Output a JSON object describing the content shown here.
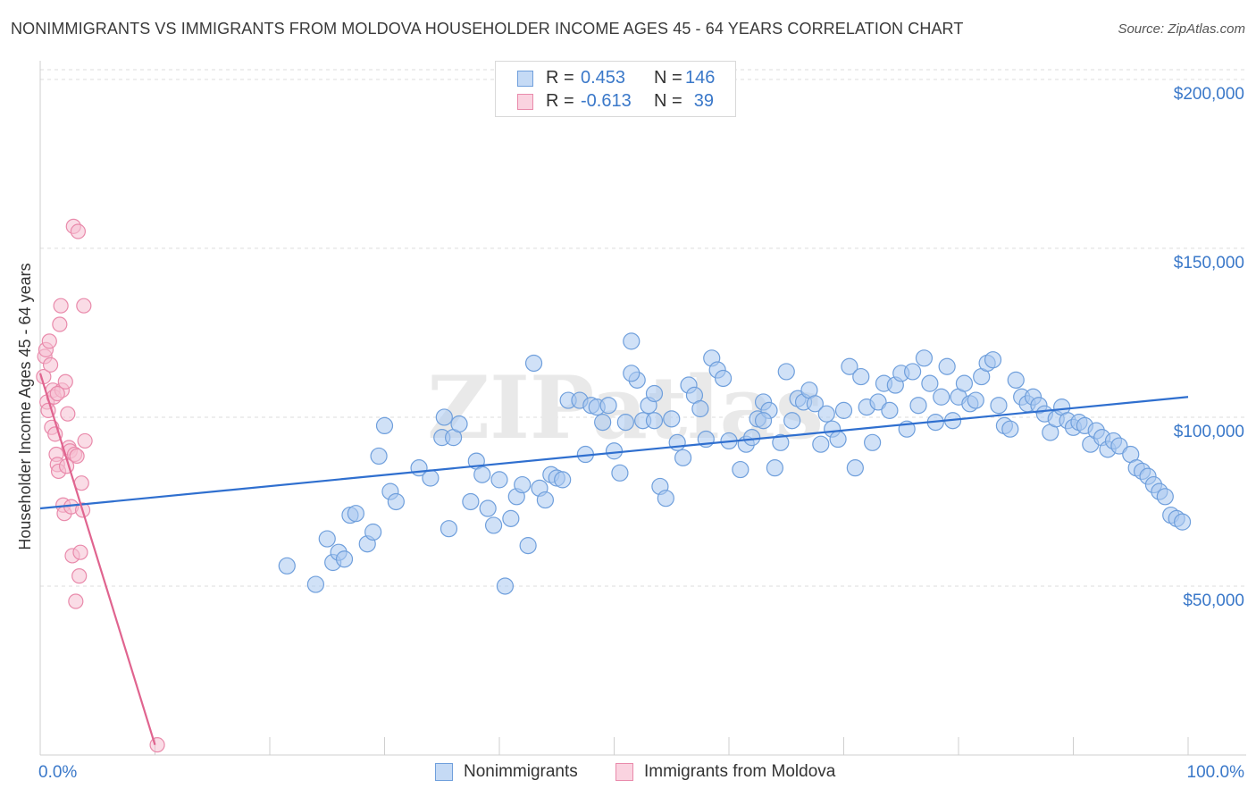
{
  "title": "NONIMMIGRANTS VS IMMIGRANTS FROM MOLDOVA HOUSEHOLDER INCOME AGES 45 - 64 YEARS CORRELATION CHART",
  "source": "Source: ZipAtlas.com",
  "watermark": "ZIPatlas",
  "colors": {
    "blue_fill": "#a9c8f0",
    "blue_stroke": "#6f9fdc",
    "blue_line": "#2f6fcf",
    "pink_fill": "#f6bfd1",
    "pink_stroke": "#e98aab",
    "pink_line": "#e0648f",
    "axis_text": "#3a78c9",
    "grid": "#dddddd"
  },
  "legend_stats": [
    {
      "r_label": "R =",
      "r_value": "0.453",
      "n_label": "N =",
      "n_value": "146"
    },
    {
      "r_label": "R =",
      "r_value": "-0.613",
      "n_label": "N =",
      "n_value": "39"
    }
  ],
  "chart_data": {
    "type": "scatter",
    "title": "NONIMMIGRANTS VS IMMIGRANTS FROM MOLDOVA HOUSEHOLDER INCOME AGES 45 - 64 YEARS CORRELATION CHART",
    "xlabel": "",
    "ylabel": "Householder Income Ages 45 - 64 years",
    "xlim": [
      0,
      100
    ],
    "ylim": [
      0,
      205000
    ],
    "x_tick_labels": [
      "0.0%",
      "100.0%"
    ],
    "y_ticks": [
      50000,
      100000,
      150000,
      200000
    ],
    "y_tick_labels": [
      "$50,000",
      "$100,000",
      "$150,000",
      "$200,000"
    ],
    "grid": true,
    "legend_position": "bottom",
    "series": [
      {
        "name": "Nonimmigrants",
        "trend": {
          "x0": 0,
          "y0": 73000,
          "x1": 100,
          "y1": 106000
        },
        "points": [
          [
            21.5,
            56
          ],
          [
            24.0,
            50.5
          ],
          [
            25.0,
            64
          ],
          [
            25.5,
            57
          ],
          [
            26.0,
            60
          ],
          [
            26.5,
            58
          ],
          [
            27.0,
            71
          ],
          [
            27.5,
            71.5
          ],
          [
            28.5,
            62.5
          ],
          [
            29.0,
            66
          ],
          [
            29.5,
            88.5
          ],
          [
            30.0,
            97.5
          ],
          [
            30.5,
            78
          ],
          [
            31.0,
            75
          ],
          [
            33.0,
            85
          ],
          [
            34.0,
            82
          ],
          [
            35.0,
            94
          ],
          [
            35.2,
            100
          ],
          [
            35.6,
            67
          ],
          [
            36.0,
            94
          ],
          [
            36.5,
            98
          ],
          [
            37.5,
            75
          ],
          [
            38.0,
            87
          ],
          [
            38.5,
            83
          ],
          [
            39.0,
            73
          ],
          [
            39.5,
            68
          ],
          [
            40.0,
            81.5
          ],
          [
            40.5,
            50
          ],
          [
            41.0,
            70
          ],
          [
            41.5,
            76.5
          ],
          [
            42.0,
            80
          ],
          [
            42.5,
            62
          ],
          [
            43.0,
            116
          ],
          [
            43.5,
            79
          ],
          [
            44.0,
            75.5
          ],
          [
            44.5,
            83
          ],
          [
            45.0,
            82
          ],
          [
            45.5,
            81.5
          ],
          [
            46.0,
            105
          ],
          [
            47.0,
            105
          ],
          [
            47.5,
            89
          ],
          [
            48.0,
            103.5
          ],
          [
            48.5,
            103
          ],
          [
            49.0,
            98.5
          ],
          [
            49.5,
            103.5
          ],
          [
            50.0,
            90
          ],
          [
            50.5,
            83.5
          ],
          [
            51.0,
            98.5
          ],
          [
            51.5,
            122.5
          ],
          [
            52.0,
            111
          ],
          [
            52.5,
            99
          ],
          [
            53.0,
            103.5
          ],
          [
            53.5,
            107
          ],
          [
            54.0,
            79.5
          ],
          [
            54.5,
            76
          ],
          [
            55.0,
            99.5
          ],
          [
            55.5,
            92.5
          ],
          [
            56.0,
            88
          ],
          [
            56.5,
            109.5
          ],
          [
            57.0,
            106.5
          ],
          [
            57.5,
            102.5
          ],
          [
            58.0,
            93.5
          ],
          [
            58.5,
            117.5
          ],
          [
            59.0,
            114
          ],
          [
            59.5,
            111.5
          ],
          [
            60.0,
            93
          ],
          [
            61.0,
            84.5
          ],
          [
            61.5,
            92
          ],
          [
            62.0,
            94
          ],
          [
            62.5,
            99.5
          ],
          [
            63.0,
            104.5
          ],
          [
            63.5,
            102
          ],
          [
            64.0,
            85
          ],
          [
            64.5,
            92.5
          ],
          [
            65.0,
            113.5
          ],
          [
            65.5,
            99
          ],
          [
            66.0,
            105.5
          ],
          [
            66.5,
            104.5
          ],
          [
            67.0,
            108
          ],
          [
            67.5,
            104
          ],
          [
            68.0,
            92
          ],
          [
            68.5,
            101
          ],
          [
            69.0,
            96.5
          ],
          [
            69.5,
            93.5
          ],
          [
            70.0,
            102
          ],
          [
            70.5,
            115
          ],
          [
            71.0,
            85
          ],
          [
            71.5,
            112
          ],
          [
            72.0,
            103
          ],
          [
            72.5,
            92.5
          ],
          [
            73.0,
            104.5
          ],
          [
            73.5,
            110
          ],
          [
            74.0,
            102
          ],
          [
            74.5,
            109.5
          ],
          [
            75.0,
            113
          ],
          [
            75.5,
            96.5
          ],
          [
            76.0,
            113.5
          ],
          [
            76.5,
            103.5
          ],
          [
            77.0,
            117.5
          ],
          [
            77.5,
            110
          ],
          [
            78.0,
            98.5
          ],
          [
            78.5,
            106
          ],
          [
            79.0,
            115
          ],
          [
            79.5,
            99
          ],
          [
            80.0,
            106
          ],
          [
            80.5,
            110
          ],
          [
            81.0,
            104
          ],
          [
            81.5,
            105
          ],
          [
            82.0,
            112
          ],
          [
            82.5,
            116
          ],
          [
            83.0,
            117
          ],
          [
            83.5,
            103.5
          ],
          [
            84.0,
            97.5
          ],
          [
            84.5,
            96.5
          ],
          [
            85.0,
            111
          ],
          [
            85.5,
            106
          ],
          [
            86.0,
            104
          ],
          [
            86.5,
            106
          ],
          [
            87.0,
            103.5
          ],
          [
            87.5,
            101
          ],
          [
            88.0,
            95.5
          ],
          [
            88.5,
            99.5
          ],
          [
            89.0,
            103
          ],
          [
            89.5,
            99
          ],
          [
            90.0,
            97
          ],
          [
            90.5,
            98.5
          ],
          [
            91.0,
            97.5
          ],
          [
            91.5,
            92
          ],
          [
            92.0,
            96
          ],
          [
            92.5,
            94
          ],
          [
            93.0,
            90.5
          ],
          [
            93.5,
            93
          ],
          [
            94.0,
            91.5
          ],
          [
            95.0,
            89
          ],
          [
            95.5,
            85
          ],
          [
            96.0,
            84
          ],
          [
            96.5,
            82.5
          ],
          [
            97.0,
            80
          ],
          [
            97.5,
            78
          ],
          [
            98.0,
            76.5
          ],
          [
            98.5,
            71
          ],
          [
            99.0,
            70
          ],
          [
            99.5,
            69
          ],
          [
            51.5,
            113
          ],
          [
            53.5,
            99
          ],
          [
            63.0,
            99
          ]
        ]
      },
      {
        "name": "Immigrants from Moldova",
        "trend": {
          "x0": 0,
          "y0": 113000,
          "x1": 10,
          "y1": 3000
        },
        "points": [
          [
            0.3,
            112
          ],
          [
            0.4,
            118
          ],
          [
            0.5,
            120
          ],
          [
            0.6,
            104.5
          ],
          [
            0.7,
            102
          ],
          [
            0.8,
            122.5
          ],
          [
            0.9,
            115.5
          ],
          [
            1.0,
            97
          ],
          [
            1.1,
            108
          ],
          [
            1.2,
            106
          ],
          [
            1.3,
            95
          ],
          [
            1.4,
            89
          ],
          [
            1.5,
            86
          ],
          [
            1.6,
            84
          ],
          [
            1.7,
            127.5
          ],
          [
            1.8,
            133
          ],
          [
            1.9,
            108
          ],
          [
            2.0,
            74
          ],
          [
            2.1,
            71.5
          ],
          [
            2.2,
            110.5
          ],
          [
            2.3,
            85.5
          ],
          [
            2.4,
            101
          ],
          [
            2.5,
            91
          ],
          [
            2.6,
            90
          ],
          [
            2.7,
            73.5
          ],
          [
            2.8,
            59
          ],
          [
            2.9,
            156.5
          ],
          [
            3.0,
            89
          ],
          [
            3.1,
            45.5
          ],
          [
            3.2,
            88.5
          ],
          [
            3.3,
            155
          ],
          [
            3.4,
            53
          ],
          [
            3.5,
            60
          ],
          [
            3.6,
            80.5
          ],
          [
            3.7,
            72.5
          ],
          [
            3.8,
            133
          ],
          [
            3.9,
            93
          ],
          [
            10.2,
            3
          ],
          [
            1.5,
            107
          ]
        ]
      }
    ]
  }
}
